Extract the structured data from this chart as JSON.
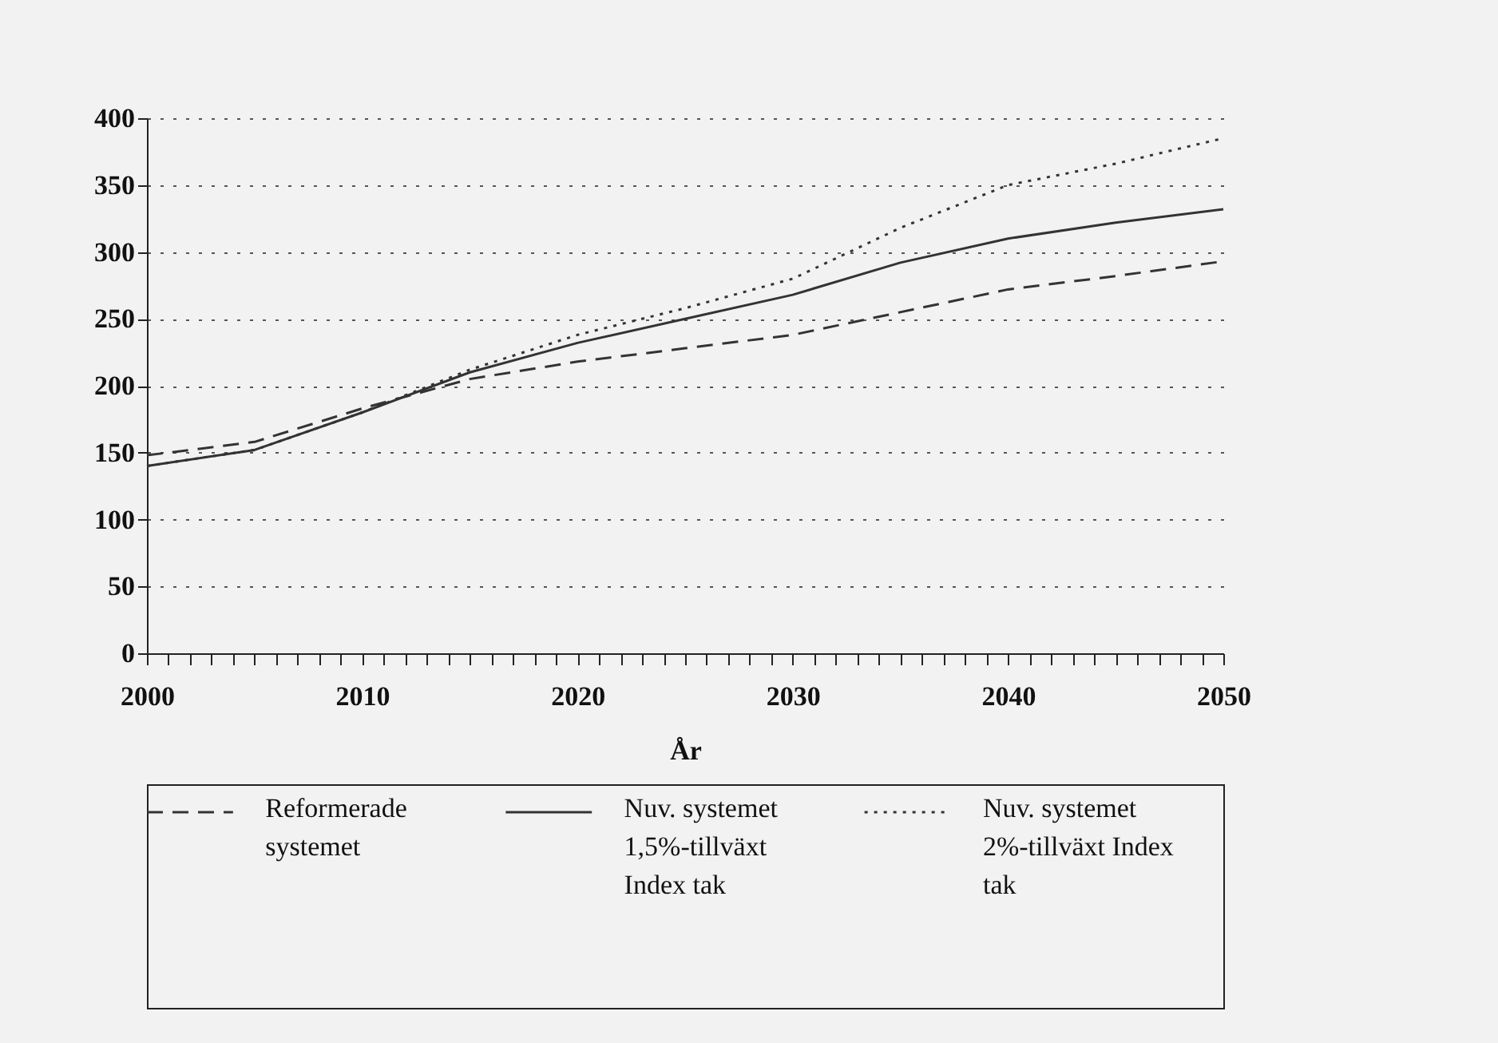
{
  "chart_data": {
    "type": "line",
    "xlabel": "År",
    "x": [
      2000,
      2005,
      2010,
      2015,
      2020,
      2025,
      2030,
      2035,
      2040,
      2045,
      2050
    ],
    "series": [
      {
        "name": "Reformerade systemet",
        "color": "#333333",
        "line_style": "dashed",
        "values": [
          148,
          158,
          183,
          205,
          218,
          228,
          238,
          255,
          272,
          282,
          293
        ]
      },
      {
        "name": "Nuv. systemet 1,5%-tillväxt Index tak",
        "color": "#333333",
        "line_style": "solid",
        "values": [
          140,
          152,
          180,
          210,
          232,
          250,
          268,
          292,
          310,
          322,
          332
        ]
      },
      {
        "name": "Nuv. systemet 2%-tillväxt Index tak",
        "color": "#333333",
        "line_style": "dotted",
        "values": [
          140,
          152,
          180,
          212,
          238,
          258,
          280,
          318,
          350,
          366,
          385
        ]
      }
    ],
    "xlim": [
      2000,
      2050
    ],
    "xticks": [
      2000,
      {
        "value": 2001,
        "label": null
      },
      {
        "value": 2002,
        "label": null
      },
      {
        "value": 2003,
        "label": null
      },
      {
        "value": 2004,
        "label": null
      },
      {
        "value": 2005,
        "label": null
      },
      {
        "value": 2006,
        "label": null
      },
      {
        "value": 2007,
        "label": null
      },
      {
        "value": 2008,
        "label": null
      },
      {
        "value": 2009,
        "label": null
      },
      2010,
      {
        "value": 2011,
        "label": null
      },
      {
        "value": 2012,
        "label": null
      },
      {
        "value": 2013,
        "label": null
      },
      {
        "value": 2014,
        "label": null
      },
      {
        "value": 2015,
        "label": null
      },
      {
        "value": 2016,
        "label": null
      },
      {
        "value": 2017,
        "label": null
      },
      {
        "value": 2018,
        "label": null
      },
      {
        "value": 2019,
        "label": null
      },
      2020,
      {
        "value": 2021,
        "label": null
      },
      {
        "value": 2022,
        "label": null
      },
      {
        "value": 2023,
        "label": null
      },
      {
        "value": 2024,
        "label": null
      },
      {
        "value": 2025,
        "label": null
      },
      {
        "value": 2026,
        "label": null
      },
      {
        "value": 2027,
        "label": null
      },
      {
        "value": 2028,
        "label": null
      },
      {
        "value": 2029,
        "label": null
      },
      2030,
      {
        "value": 2031,
        "label": null
      },
      {
        "value": 2032,
        "label": null
      },
      {
        "value": 2033,
        "label": null
      },
      {
        "value": 2034,
        "label": null
      },
      {
        "value": 2035,
        "label": null
      },
      {
        "value": 2036,
        "label": null
      },
      {
        "value": 2037,
        "label": null
      },
      {
        "value": 2038,
        "label": null
      },
      {
        "value": 2039,
        "label": null
      },
      2040,
      {
        "value": 2041,
        "label": null
      },
      {
        "value": 2042,
        "label": null
      },
      {
        "value": 2043,
        "label": null
      },
      {
        "value": 2044,
        "label": null
      },
      {
        "value": 2045,
        "label": null
      },
      {
        "value": 2046,
        "label": null
      },
      {
        "value": 2047,
        "label": null
      },
      {
        "value": 2048,
        "label": null
      },
      {
        "value": 2049,
        "label": null
      },
      2050
    ],
    "ylim": [
      0,
      400
    ],
    "yticks": [
      0,
      50,
      100,
      150,
      200,
      250,
      300,
      350,
      400
    ],
    "grid": "y",
    "legend": "bottom"
  }
}
